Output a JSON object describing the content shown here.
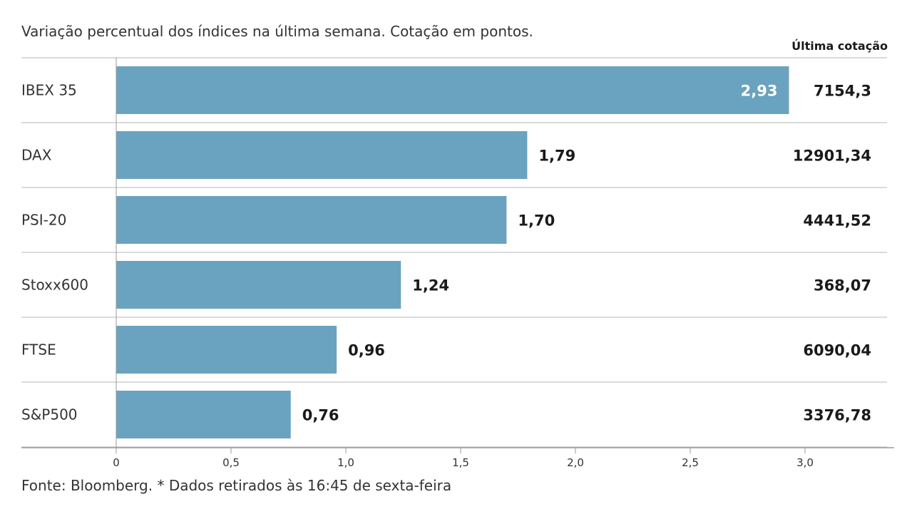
{
  "subtitle": "Variação percentual dos índices na última semana. Cotação em pontos.",
  "last_column_header": "Última cotação",
  "source": "Fonte: Bloomberg.  * Dados retirados às 16:45 de sexta-feira",
  "colors": {
    "bar": "#6aa3bf",
    "separator": "#cfcfcf",
    "axis": "#999999",
    "value_inside": "#ffffff",
    "value_outside": "#1a1a1a"
  },
  "chart_data": {
    "type": "bar",
    "orientation": "horizontal",
    "categories": [
      "IBEX 35",
      "DAX",
      "PSI-20",
      "Stoxx600",
      "FTSE",
      "S&P500"
    ],
    "values": [
      2.93,
      1.79,
      1.7,
      1.24,
      0.96,
      0.76
    ],
    "value_labels": [
      "2,93",
      "1,79",
      "1,70",
      "1,24",
      "0,96",
      "0,76"
    ],
    "last_quotes": [
      "7154,3",
      "12901,34",
      "4441,52",
      "368,07",
      "6090,04",
      "3376,78"
    ],
    "xlim": [
      0,
      3.0
    ],
    "ticks": [
      0,
      0.5,
      1.0,
      1.5,
      2.0,
      2.5,
      3.0
    ],
    "tick_labels": [
      "0",
      "0,5",
      "1,0",
      "1,5",
      "2,0",
      "2,5",
      "3,0"
    ],
    "grid": false,
    "legend": "none"
  }
}
